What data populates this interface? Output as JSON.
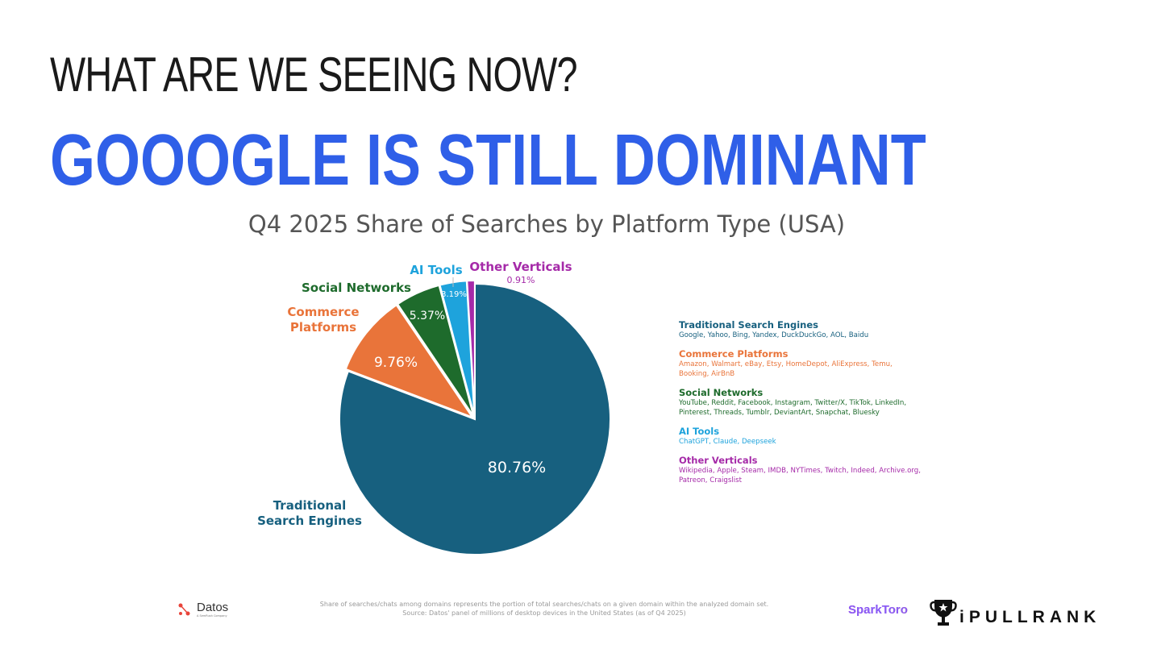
{
  "slide": {
    "kicker": "WHAT ARE WE SEEING NOW?",
    "headline": "GOOOGLE IS STILL DOMINANT"
  },
  "chart_data": {
    "type": "pie",
    "title": "Q4 2025 Share of Searches by Platform Type (USA)",
    "slices": [
      {
        "name": "Traditional Search Engines",
        "chart_label": "Traditional\nSearch Engines",
        "value": 80.76,
        "value_label": "80.76%",
        "color": "#17607f"
      },
      {
        "name": "Commerce Platforms",
        "chart_label": "Commerce\nPlatforms",
        "value": 9.76,
        "value_label": "9.76%",
        "color": "#e9743a"
      },
      {
        "name": "Social Networks",
        "chart_label": "Social Networks",
        "value": 5.37,
        "value_label": "5.37%",
        "color": "#1e6b2c"
      },
      {
        "name": "AI Tools",
        "chart_label": "AI Tools",
        "value": 3.19,
        "value_label": "3.19%",
        "color": "#1ea3dc"
      },
      {
        "name": "Other Verticals",
        "chart_label": "Other Verticals",
        "value": 0.91,
        "value_label": "0.91%",
        "color": "#a52aa8"
      }
    ],
    "legend": [
      {
        "title": "Traditional Search Engines",
        "desc": "Google, Yahoo, Bing, Yandex, DuckDuckGo, AOL, Baidu",
        "color": "#17607f"
      },
      {
        "title": "Commerce Platforms",
        "desc": "Amazon, Walmart, eBay, Etsy, HomeDepot, AliExpress, Temu, Booking, AirBnB",
        "color": "#e9743a"
      },
      {
        "title": "Social Networks",
        "desc": "YouTube, Reddit, Facebook, Instagram, Twitter/X, TikTok, LinkedIn, Pinterest, Threads, Tumblr, DeviantArt, Snapchat, Bluesky",
        "color": "#1e6b2c"
      },
      {
        "title": "AI Tools",
        "desc": "ChatGPT, Claude, Deepseek",
        "color": "#1ea3dc"
      },
      {
        "title": "Other Verticals",
        "desc": "Wikipedia, Apple, Steam, IMDB, NYTimes, Twitch, Indeed, Archive.org, Patreon, Craigslist",
        "color": "#a52aa8"
      }
    ]
  },
  "footer": {
    "note_line1": "Share of searches/chats among domains represents the portion of total searches/chats on a given domain within the analyzed domain set.",
    "note_line2": "Source: Datos' panel of millions of desktop devices in the United States (as of Q4 2025)",
    "datos_name": "Datos",
    "datos_sub": "A SemRush Company",
    "sparktoro": "SparkToro",
    "ipullrank": "iPULLRANK"
  }
}
